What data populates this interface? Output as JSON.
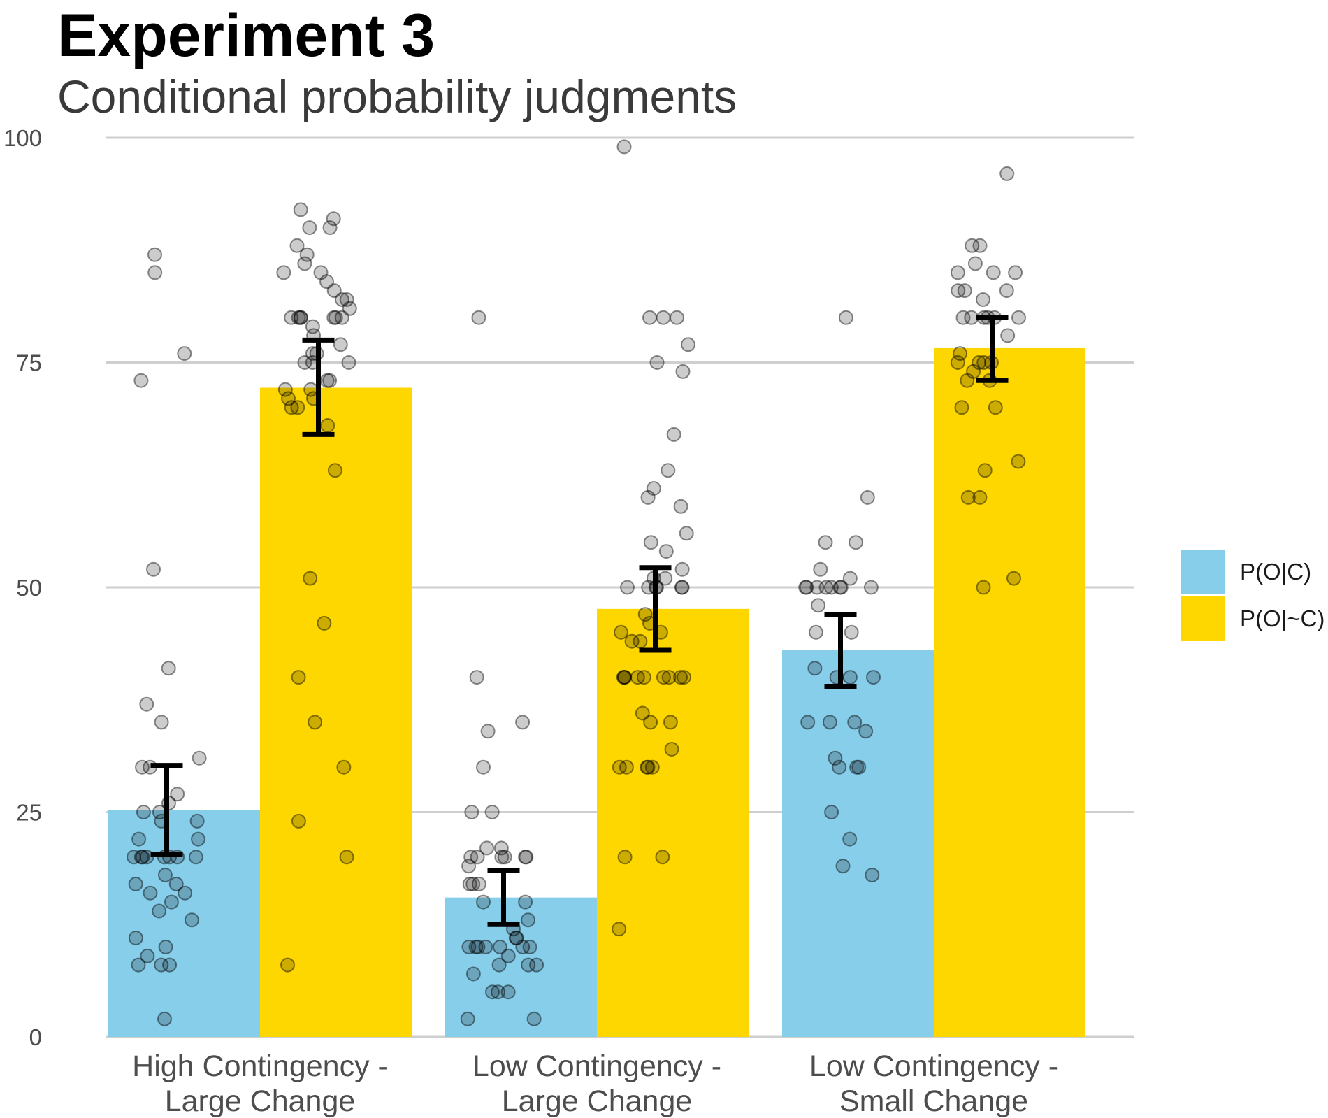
{
  "chart_data": {
    "type": "bar",
    "title": "Experiment 3",
    "subtitle": "Conditional probability judgments",
    "xlabel": "",
    "ylabel": "",
    "ylim": [
      0,
      100
    ],
    "yticks": [
      "0",
      "25",
      "50",
      "75",
      "100"
    ],
    "grid": true,
    "legend_position": "right",
    "categories": [
      {
        "line1": "High Contingency -",
        "line2": "Large Change"
      },
      {
        "line1": "Low Contingency -",
        "line2": "Large Change"
      },
      {
        "line1": "Low Contingency -",
        "line2": "Small Change"
      }
    ],
    "series": [
      {
        "name": "P(O|C)",
        "color": "#87CEEB",
        "values": [
          25.2,
          15.5,
          43.0
        ],
        "error_low": [
          20.3,
          12.5,
          39.0
        ],
        "error_high": [
          30.2,
          18.5,
          47.0
        ],
        "points": [
          [
            2,
            8,
            8,
            9,
            8,
            10,
            11,
            13,
            15,
            14,
            16,
            16,
            17,
            17,
            18,
            20,
            20,
            20,
            20,
            20,
            20,
            20,
            20,
            22,
            22,
            24,
            24,
            25,
            25,
            26,
            27,
            30,
            30,
            31,
            35,
            37,
            41,
            52,
            73,
            76,
            85,
            87
          ],
          [
            2,
            2,
            5,
            5,
            5,
            7,
            8,
            8,
            8,
            9,
            10,
            10,
            10,
            10,
            10,
            10,
            10,
            11,
            11,
            12,
            13,
            15,
            15,
            17,
            17,
            17,
            19,
            20,
            20,
            20,
            20,
            20,
            20,
            21,
            21,
            25,
            25,
            30,
            34,
            35,
            40,
            80
          ],
          [
            18,
            19,
            22,
            25,
            30,
            30,
            30,
            31,
            34,
            35,
            35,
            35,
            40,
            40,
            40,
            41,
            45,
            45,
            48,
            50,
            50,
            50,
            50,
            50,
            50,
            50,
            50,
            51,
            52,
            55,
            55,
            60,
            80
          ]
        ]
      },
      {
        "name": "P(O|~C)",
        "color": "#FFD700",
        "values": [
          72.2,
          47.6,
          76.6
        ],
        "error_low": [
          67.0,
          43.0,
          73.0
        ],
        "error_high": [
          77.5,
          52.2,
          80.0
        ],
        "points": [
          [
            8,
            20,
            24,
            30,
            35,
            40,
            46,
            51,
            63,
            68,
            70,
            70,
            71,
            71,
            72,
            72,
            73,
            73,
            75,
            75,
            75,
            76,
            76,
            77,
            78,
            79,
            80,
            80,
            80,
            80,
            80,
            80,
            80,
            81,
            82,
            82,
            83,
            84,
            85,
            85,
            86,
            87,
            88,
            90,
            90,
            91,
            92
          ],
          [
            12,
            20,
            20,
            30,
            30,
            30,
            30,
            30,
            32,
            35,
            35,
            36,
            40,
            40,
            40,
            40,
            40,
            40,
            40,
            40,
            40,
            44,
            44,
            45,
            45,
            46,
            47,
            50,
            50,
            50,
            50,
            50,
            50,
            51,
            51,
            52,
            54,
            55,
            56,
            59,
            60,
            61,
            63,
            67,
            74,
            75,
            77,
            80,
            80,
            80,
            99
          ],
          [
            50,
            51,
            60,
            60,
            63,
            64,
            70,
            70,
            73,
            73,
            74,
            75,
            75,
            75,
            75,
            76,
            78,
            80,
            80,
            80,
            80,
            80,
            80,
            82,
            83,
            83,
            83,
            85,
            85,
            85,
            86,
            88,
            88,
            96
          ]
        ]
      }
    ]
  }
}
